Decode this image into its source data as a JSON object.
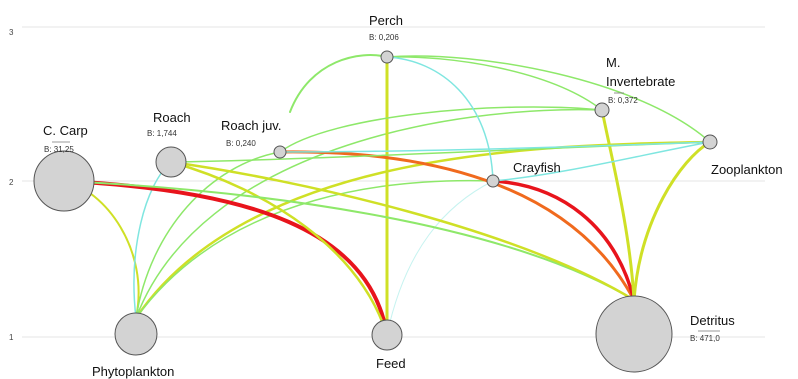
{
  "axis": {
    "ticks": [
      "1",
      "2",
      "3"
    ]
  },
  "nodes": [
    {
      "id": "perch",
      "label": "Perch",
      "biomass": "B: 0,206"
    },
    {
      "id": "invert",
      "label_line1": "M.",
      "label_line2": "Invertebrate",
      "biomass": "B: 0,372"
    },
    {
      "id": "carp",
      "label": "C. Carp",
      "biomass": "B: 31,25"
    },
    {
      "id": "roach",
      "label": "Roach",
      "biomass": "B: 1,744"
    },
    {
      "id": "roachjuv",
      "label": "Roach juv.",
      "biomass": "B: 0,240"
    },
    {
      "id": "crayfish",
      "label": "Crayfish",
      "biomass": ""
    },
    {
      "id": "zoo",
      "label": "Zooplankton",
      "biomass": ""
    },
    {
      "id": "phyto",
      "label": "Phytoplankton",
      "biomass": ""
    },
    {
      "id": "feed",
      "label": "Feed",
      "biomass": ""
    },
    {
      "id": "detritus",
      "label": "Detritus",
      "biomass": "B: 471,0"
    }
  ],
  "colors": {
    "strong": "#e8141c",
    "orange": "#f06a1e",
    "yellow": "#cfe026",
    "lightgreen": "#8ee86a",
    "cyan": "#7fe6e0",
    "palecyan": "#c6f3f0"
  }
}
